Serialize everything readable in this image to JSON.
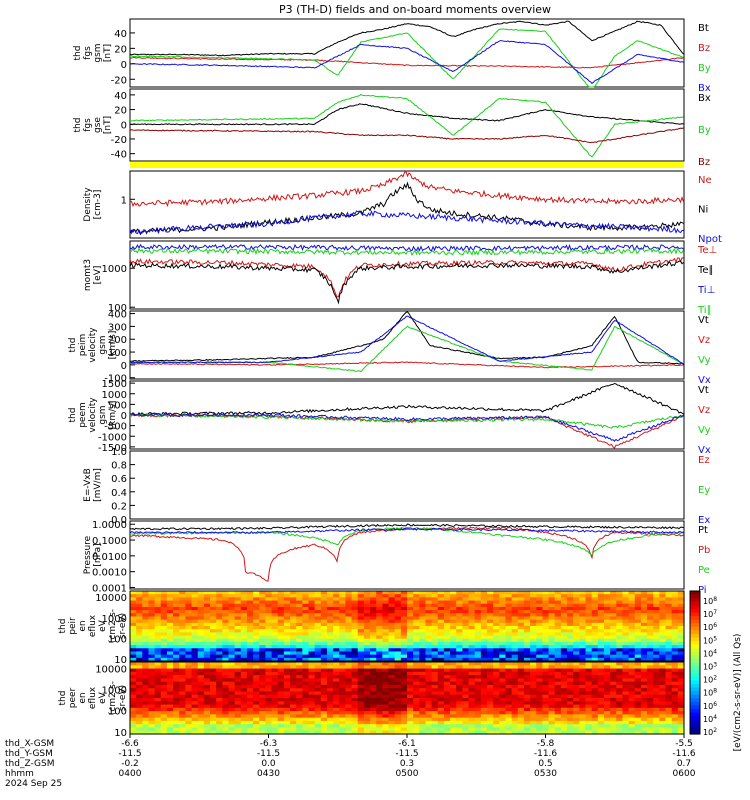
{
  "title": "P3 (TH-D) fields and on-board moments overview",
  "colors": {
    "black": "#000000",
    "red": "#d01818",
    "darkred": "#8b0000",
    "green": "#18d018",
    "blue": "#1010e0",
    "yellow": "#ffff00"
  },
  "chart_data": [
    {
      "type": "line",
      "panel_id": "fgs-gsm",
      "ylabel": [
        "thd",
        "fgs",
        "gsm",
        "[nT]"
      ],
      "yticks": [
        "40",
        "20",
        "0",
        "-20"
      ],
      "ylim": [
        -30,
        58
      ],
      "series": [
        {
          "name": "Bt",
          "color": "black",
          "x": [
            "0400",
            "0410",
            "0420",
            "0430",
            "0440",
            "0445",
            "0450",
            "0455",
            "0500",
            "0505",
            "0510",
            "0515",
            "0520",
            "0525",
            "0530",
            "0535",
            "0540",
            "0545",
            "0550",
            "0555",
            "0600"
          ],
          "values": [
            12,
            12,
            11,
            13,
            13,
            28,
            40,
            45,
            52,
            48,
            35,
            45,
            52,
            55,
            50,
            55,
            30,
            42,
            55,
            50,
            12
          ]
        },
        {
          "name": "Bz",
          "color": "red",
          "x": [
            "0400",
            "0420",
            "0440",
            "0500",
            "0520",
            "0540",
            "0600"
          ],
          "values": [
            8,
            6,
            5,
            -2,
            -3,
            -5,
            8
          ]
        },
        {
          "name": "By",
          "color": "green",
          "x": [
            "0400",
            "0420",
            "0440",
            "0445",
            "0450",
            "0500",
            "0510",
            "0520",
            "0530",
            "0540",
            "0545",
            "0550",
            "0600"
          ],
          "values": [
            10,
            8,
            5,
            -15,
            28,
            40,
            -20,
            45,
            42,
            -35,
            10,
            30,
            8
          ]
        },
        {
          "name": "Bx",
          "color": "blue",
          "x": [
            "0400",
            "0420",
            "0440",
            "0450",
            "0500",
            "0510",
            "0520",
            "0530",
            "0540",
            "0550",
            "0600"
          ],
          "values": [
            0,
            -2,
            -5,
            25,
            20,
            -10,
            30,
            25,
            -25,
            12,
            2
          ]
        }
      ]
    },
    {
      "type": "line",
      "panel_id": "fgs-gse",
      "ylabel": [
        "thd",
        "fgs",
        "gse",
        "[nT]"
      ],
      "yticks": [
        "40",
        "20",
        "0",
        "-20",
        "-40"
      ],
      "ylim": [
        -50,
        48
      ],
      "series": [
        {
          "name": "Bx",
          "color": "black",
          "x": [
            "0400",
            "0440",
            "0445",
            "0450",
            "0500",
            "0510",
            "0520",
            "0530",
            "0540",
            "0600"
          ],
          "values": [
            0,
            0,
            20,
            28,
            15,
            8,
            5,
            20,
            10,
            0
          ]
        },
        {
          "name": "By",
          "color": "green",
          "x": [
            "0400",
            "0440",
            "0445",
            "0450",
            "0500",
            "0510",
            "0520",
            "0530",
            "0540",
            "0545",
            "0600"
          ],
          "values": [
            5,
            8,
            30,
            40,
            35,
            -15,
            35,
            30,
            -45,
            0,
            10
          ]
        },
        {
          "name": "Bz",
          "color": "darkred",
          "x": [
            "0400",
            "0440",
            "0450",
            "0500",
            "0510",
            "0520",
            "0530",
            "0540",
            "0600"
          ],
          "values": [
            -8,
            -10,
            -15,
            -15,
            -20,
            -20,
            -15,
            -25,
            -5
          ]
        }
      ]
    },
    {
      "type": "area",
      "panel_id": "flag-bar",
      "note_color": "yellow"
    },
    {
      "type": "line",
      "panel_id": "density",
      "ylabel": [
        "Density",
        "[cm-3]"
      ],
      "yticks": [
        "1"
      ],
      "yscale": "log",
      "ylim": [
        0.15,
        4.0
      ],
      "series": [
        {
          "name": "Ne",
          "color": "red",
          "x": [
            "0400",
            "0420",
            "0440",
            "0450",
            "0455",
            "0500",
            "0502",
            "0505",
            "0510",
            "0520",
            "0530",
            "0540",
            "0550",
            "0600"
          ],
          "values": [
            0.8,
            0.9,
            1.2,
            1.5,
            2.0,
            3.5,
            2.5,
            1.8,
            1.5,
            1.2,
            1.0,
            0.9,
            0.9,
            1.0
          ]
        },
        {
          "name": "Ni",
          "color": "black",
          "x": [
            "0400",
            "0420",
            "0440",
            "0450",
            "0455",
            "0500",
            "0502",
            "0505",
            "0510",
            "0520",
            "0530",
            "0540",
            "0550",
            "0600"
          ],
          "values": [
            0.2,
            0.25,
            0.4,
            0.5,
            0.8,
            2.0,
            1.0,
            0.6,
            0.5,
            0.4,
            0.3,
            0.25,
            0.25,
            0.3
          ]
        },
        {
          "name": "Npot",
          "color": "blue",
          "x": [
            "0400",
            "0430",
            "0450",
            "0500",
            "0530",
            "0600"
          ],
          "values": [
            0.2,
            0.3,
            0.5,
            0.45,
            0.3,
            0.22
          ]
        }
      ]
    },
    {
      "type": "line",
      "panel_id": "mom-temp",
      "ylabel": [
        "momt3",
        "[eV]"
      ],
      "yticks": [
        "1000",
        "100"
      ],
      "yscale": "log",
      "ylim": [
        90,
        5000
      ],
      "series": [
        {
          "name": "Te⊥",
          "color": "red",
          "x": [
            "0400",
            "0420",
            "0440",
            "0445",
            "0450",
            "0500",
            "0520",
            "0540",
            "0545",
            "0600"
          ],
          "values": [
            1500,
            1400,
            1100,
            150,
            1200,
            1300,
            1400,
            1300,
            900,
            1700
          ]
        },
        {
          "name": "Te∥",
          "color": "black",
          "x": [
            "0400",
            "0420",
            "0440",
            "0445",
            "0450",
            "0500",
            "0520",
            "0540",
            "0545",
            "0600"
          ],
          "values": [
            1200,
            1100,
            900,
            120,
            1000,
            1100,
            1200,
            1100,
            800,
            1400
          ]
        },
        {
          "name": "Ti⊥",
          "color": "blue",
          "x": [
            "0400",
            "0430",
            "0500",
            "0530",
            "0600"
          ],
          "values": [
            3500,
            3500,
            3200,
            3300,
            3500
          ]
        },
        {
          "name": "Ti∥",
          "color": "green",
          "x": [
            "0400",
            "0430",
            "0500",
            "0530",
            "0600"
          ],
          "values": [
            2800,
            2700,
            2500,
            2600,
            2800
          ]
        }
      ]
    },
    {
      "type": "line",
      "panel_id": "ion-velocity",
      "ylabel": [
        "thd",
        "peim",
        "velocity",
        "gsm",
        "[km/s]"
      ],
      "yticks": [
        "400",
        "300",
        "200",
        "100",
        "0",
        "-100"
      ],
      "ylim": [
        -110,
        420
      ],
      "series": [
        {
          "name": "Vt",
          "color": "black",
          "x": [
            "0400",
            "0420",
            "0440",
            "0450",
            "0455",
            "0500",
            "0505",
            "0520",
            "0530",
            "0540",
            "0545",
            "0550",
            "0600"
          ],
          "values": [
            30,
            40,
            60,
            150,
            200,
            420,
            150,
            50,
            60,
            150,
            380,
            20,
            10
          ]
        },
        {
          "name": "Vz",
          "color": "red",
          "x": [
            "0400",
            "0430",
            "0500",
            "0530",
            "0600"
          ],
          "values": [
            10,
            0,
            20,
            -20,
            0
          ]
        },
        {
          "name": "Vy",
          "color": "green",
          "x": [
            "0400",
            "0430",
            "0450",
            "0500",
            "0520",
            "0540",
            "0545",
            "0600"
          ],
          "values": [
            20,
            20,
            -50,
            300,
            30,
            -40,
            300,
            5
          ]
        },
        {
          "name": "Vx",
          "color": "blue",
          "x": [
            "0400",
            "0430",
            "0450",
            "0500",
            "0520",
            "0540",
            "0545",
            "0600"
          ],
          "values": [
            20,
            20,
            100,
            380,
            30,
            100,
            350,
            5
          ]
        }
      ]
    },
    {
      "type": "line",
      "panel_id": "electron-velocity",
      "ylabel": [
        "thd",
        "peem",
        "velocity",
        "gsm",
        "[km/s]"
      ],
      "yticks": [
        "1500",
        "1000",
        "500",
        "0",
        "-500",
        "-1000",
        "-1500"
      ],
      "ylim": [
        -1600,
        1600
      ],
      "series": [
        {
          "name": "Vt",
          "color": "black",
          "x": [
            "0400",
            "0430",
            "0500",
            "0530",
            "0545",
            "0600"
          ],
          "values": [
            50,
            100,
            400,
            200,
            1500,
            50
          ]
        },
        {
          "name": "Vz",
          "color": "red",
          "x": [
            "0400",
            "0430",
            "0500",
            "0530",
            "0545",
            "0600"
          ],
          "values": [
            -20,
            -50,
            -300,
            -100,
            -1500,
            -20
          ]
        },
        {
          "name": "Vy",
          "color": "green",
          "x": [
            "0400",
            "0430",
            "0500",
            "0530",
            "0545",
            "0600"
          ],
          "values": [
            0,
            -100,
            -300,
            -200,
            -600,
            0
          ]
        },
        {
          "name": "Vx",
          "color": "blue",
          "x": [
            "0400",
            "0430",
            "0500",
            "0530",
            "0545",
            "0600"
          ],
          "values": [
            0,
            0,
            -200,
            -100,
            -1200,
            0
          ]
        }
      ]
    },
    {
      "type": "line",
      "panel_id": "e-field",
      "ylabel": [
        "E=-VxB",
        "[mV/m]"
      ],
      "yticks": [
        "1.0",
        "0.8",
        "0.6",
        "0.4",
        "0.2",
        "0.0"
      ],
      "ylim": [
        0,
        1
      ],
      "series": [
        {
          "name": "Ez",
          "color": "red",
          "x": [],
          "values": []
        },
        {
          "name": "Ey",
          "color": "green",
          "x": [],
          "values": []
        },
        {
          "name": "Ex",
          "color": "blue",
          "x": [],
          "values": []
        }
      ]
    },
    {
      "type": "line",
      "panel_id": "pressure",
      "ylabel": [
        "Pressure",
        "[nPa]"
      ],
      "yticks": [
        "1.0000",
        "0.1000",
        "0.0100",
        "0.0010",
        "0.0001"
      ],
      "yscale": "log",
      "ylim": [
        8e-05,
        1.6
      ],
      "series": [
        {
          "name": "Pt",
          "color": "black",
          "x": [
            "0400",
            "0430",
            "0450",
            "0500",
            "0530",
            "0600"
          ],
          "values": [
            0.5,
            0.55,
            0.8,
            0.9,
            0.7,
            0.6
          ]
        },
        {
          "name": "Pb",
          "color": "red",
          "x": [
            "0400",
            "0420",
            "0425",
            "0430",
            "0440",
            "0445",
            "0450",
            "0500",
            "0520",
            "0540",
            "0545",
            "0600"
          ],
          "values": [
            0.2,
            0.1,
            0.001,
            0.0002,
            0.05,
            0.003,
            0.3,
            0.5,
            0.6,
            0.004,
            0.3,
            0.2
          ]
        },
        {
          "name": "Pe",
          "color": "green",
          "x": [
            "0400",
            "0430",
            "0445",
            "0450",
            "0500",
            "0520",
            "0540",
            "0600"
          ],
          "values": [
            0.25,
            0.3,
            0.05,
            0.4,
            0.6,
            0.2,
            0.01,
            0.3
          ]
        },
        {
          "name": "Pi",
          "color": "blue",
          "x": [
            "0400",
            "0430",
            "0500",
            "0530",
            "0600"
          ],
          "values": [
            0.3,
            0.3,
            0.5,
            0.4,
            0.3
          ]
        }
      ]
    },
    {
      "type": "heatmap",
      "panel_id": "ion-spectrogram",
      "ylabel": [
        "thd",
        "peir",
        "en",
        "eflux",
        "eV",
        "(cm2-s-",
        "sr-eV)"
      ],
      "yticks": [
        "10000",
        "1000",
        "100",
        "10"
      ],
      "yscale": "log"
    },
    {
      "type": "heatmap",
      "panel_id": "electron-spectrogram",
      "ylabel": [
        "thd",
        "peer",
        "en",
        "eflux",
        "eV",
        "(cm2-s-",
        "sr-eV)"
      ],
      "yticks": [
        "10000",
        "1000",
        "100",
        "10"
      ],
      "yscale": "log"
    }
  ],
  "colorbar": {
    "label": "[eV/(cm2-s-sr-eV)] (All Qs)",
    "ticks": [
      "10^8",
      "10^7",
      "10^6",
      "10^5",
      "10^4",
      "10^3",
      "10^2",
      "10^8",
      "10^6",
      "10^4",
      "10^2"
    ]
  },
  "x_axis": {
    "rows": [
      {
        "label": "thd_X-GSM",
        "values": [
          "-6.6",
          "-6.3",
          "-6.1",
          "-5.8",
          "-5.5"
        ]
      },
      {
        "label": "thd_Y-GSM",
        "values": [
          "-11.5",
          "-11.5",
          "-11.5",
          "-11.6",
          "-11.6"
        ]
      },
      {
        "label": "thd_Z-GSM",
        "values": [
          "-0.2",
          "0.0",
          "0.3",
          "0.5",
          "0.7"
        ]
      },
      {
        "label": "hhmm",
        "values": [
          "0400",
          "0430",
          "0500",
          "0530",
          "0600"
        ]
      }
    ],
    "date": "2024 Sep 25"
  }
}
